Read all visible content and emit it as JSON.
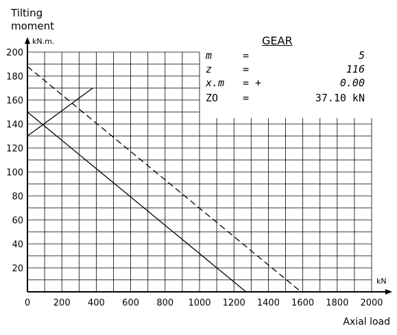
{
  "chart_data": {
    "type": "line",
    "ylabel": "Tilting moment",
    "yunit": "kN.m.",
    "xlabel": "Axial load",
    "xunit": "kN",
    "xlim": [
      0,
      2000
    ],
    "ylim": [
      0,
      200
    ],
    "x_ticks": [
      0,
      200,
      400,
      600,
      800,
      1000,
      1200,
      1400,
      1600,
      1800,
      2000
    ],
    "y_ticks": [
      20,
      40,
      60,
      80,
      100,
      120,
      140,
      160,
      180,
      200
    ],
    "grid": true,
    "series": [
      {
        "style": "solid",
        "points": [
          [
            0,
            150
          ],
          [
            1270,
            0
          ]
        ]
      },
      {
        "style": "dashed",
        "points": [
          [
            0,
            188
          ],
          [
            1590,
            0
          ]
        ]
      },
      {
        "style": "solid",
        "points": [
          [
            0,
            130
          ],
          [
            380,
            170
          ]
        ]
      }
    ],
    "gear": {
      "title": "GEAR",
      "params": [
        {
          "name": "m",
          "eq": "=",
          "value": "5"
        },
        {
          "name": "z",
          "eq": "=",
          "value": "116"
        },
        {
          "name": "x.m",
          "eq": "= +",
          "value": "0.00"
        },
        {
          "name": "ZO",
          "eq": "=",
          "value": "37.10 kN"
        }
      ]
    }
  }
}
